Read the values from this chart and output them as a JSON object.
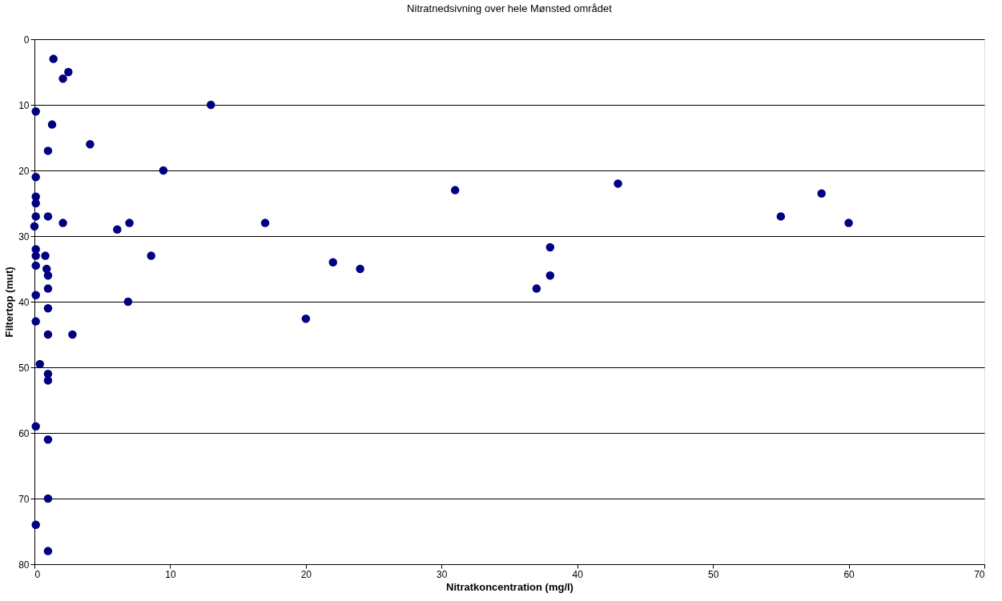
{
  "chart_data": {
    "type": "scatter",
    "title": "Nitratnedsivning over hele Mønsted området",
    "xlabel": "Nitratkoncentration (mg/l)",
    "ylabel": "Filtertop (mut)",
    "xlim": [
      0,
      70
    ],
    "xticks": [
      0,
      10,
      20,
      30,
      40,
      50,
      60,
      70
    ],
    "ylim": [
      80,
      0
    ],
    "yticks": [
      0,
      10,
      20,
      30,
      40,
      50,
      60,
      70,
      80
    ],
    "grid": "y",
    "marker": "circle",
    "series": [
      {
        "color": "#000080",
        "x": [
          1.4,
          2.5,
          2.1,
          13,
          0.1,
          1.3,
          1.0,
          4.1,
          9.5,
          0.1,
          0.1,
          0.1,
          0.1,
          1.0,
          2.1,
          0,
          6.1,
          7.0,
          17,
          31,
          43,
          55,
          58,
          60,
          0.1,
          0.1,
          0.8,
          8.6,
          22,
          24,
          38,
          38,
          37,
          0.1,
          0.9,
          1.0,
          1.0,
          0.1,
          6.9,
          1.0,
          0.1,
          20,
          1.0,
          2.8,
          0.4,
          1.0,
          1.0,
          0.1,
          1.0,
          1.0,
          0.1,
          1.0
        ],
        "values": [
          3,
          5,
          6,
          10,
          11,
          13,
          17,
          16,
          20,
          21,
          24,
          25,
          27,
          27,
          28,
          28.5,
          29,
          28,
          28,
          23,
          22,
          27,
          23.5,
          28,
          32,
          33,
          33,
          33,
          34,
          35,
          31.7,
          36,
          38,
          34.5,
          35,
          36,
          38,
          39,
          40,
          41,
          43,
          42.6,
          45,
          45,
          49.5,
          51,
          52,
          59,
          61,
          70,
          74,
          78
        ]
      }
    ]
  }
}
